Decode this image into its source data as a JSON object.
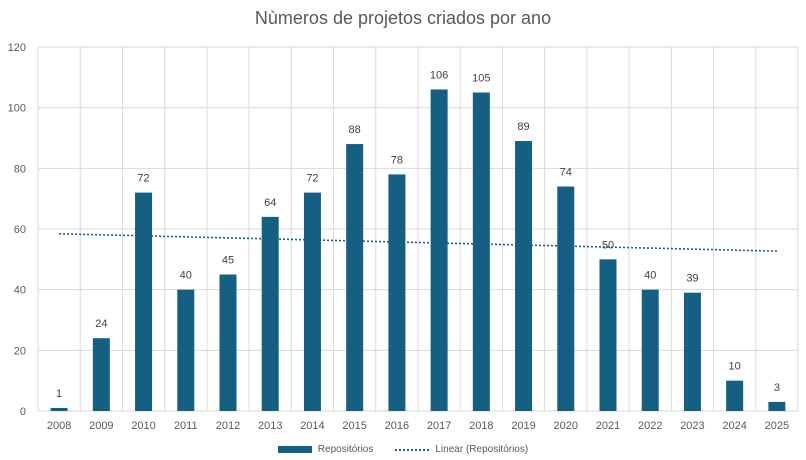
{
  "chart_data": {
    "type": "bar",
    "title": "Nùmeros de projetos criados por ano",
    "categories": [
      "2008",
      "2009",
      "2010",
      "2011",
      "2012",
      "2013",
      "2014",
      "2015",
      "2016",
      "2017",
      "2018",
      "2019",
      "2020",
      "2021",
      "2022",
      "2023",
      "2024",
      "2025"
    ],
    "series": [
      {
        "name": "Repositórios",
        "values": [
          1,
          24,
          72,
          40,
          45,
          64,
          72,
          88,
          78,
          106,
          105,
          89,
          74,
          50,
          40,
          39,
          10,
          3
        ]
      }
    ],
    "trendline": {
      "name": "Linear (Repositórios)",
      "type": "linear"
    },
    "ylim": [
      0,
      120
    ],
    "yticks": [
      0,
      20,
      40,
      60,
      80,
      100,
      120
    ],
    "grid": true,
    "legend_position": "bottom",
    "colors": {
      "bar": "#155f82",
      "trend": "#155f82",
      "grid": "#d9d9d9"
    }
  }
}
